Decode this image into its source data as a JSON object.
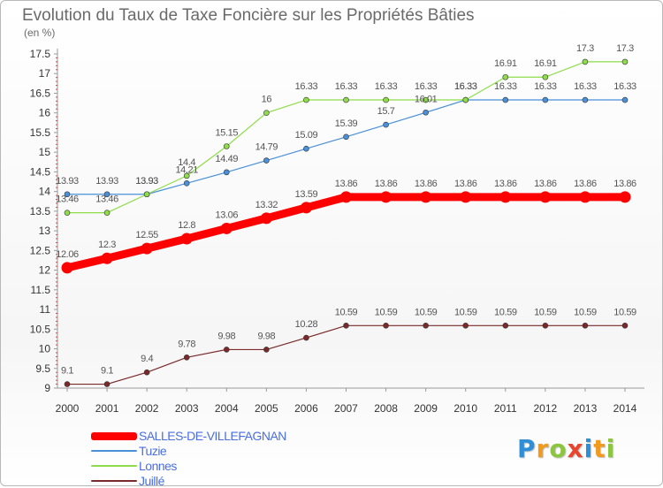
{
  "header": {
    "title": "Evolution du Taux de Taxe Foncière sur les Propriétés Bâties",
    "subtitle": "(en %)"
  },
  "logo": {
    "letters": [
      "P",
      "r",
      "o",
      "x",
      "i",
      "t",
      "i"
    ],
    "colors": [
      "#2e8fd6",
      "#f09a1e",
      "#8cc63f",
      "#e8452c",
      "#2e8fd6",
      "#f09a1e",
      "#8cc63f"
    ]
  },
  "chart_data": {
    "type": "line",
    "title": "Evolution du Taux de Taxe Foncière sur les Propriétés Bâties",
    "ylabel": "(en %)",
    "xlabel": "",
    "x": [
      2000,
      2001,
      2002,
      2003,
      2004,
      2005,
      2006,
      2007,
      2008,
      2009,
      2010,
      2011,
      2012,
      2013,
      2014
    ],
    "ylim": [
      9,
      17.5
    ],
    "yticks": [
      9,
      9.5,
      10,
      10.5,
      11,
      11.5,
      12,
      12.5,
      13,
      13.5,
      14,
      14.5,
      15,
      15.5,
      16,
      16.5,
      17,
      17.5
    ],
    "grid": false,
    "legend_position": "bottom-left",
    "series": [
      {
        "name": "SALLES-DE-VILLEFAGNAN",
        "color": "#ff0000",
        "highlight": true,
        "values": [
          12.06,
          12.3,
          12.55,
          12.8,
          13.06,
          13.32,
          13.59,
          13.86,
          13.86,
          13.86,
          13.86,
          13.86,
          13.86,
          13.86,
          13.86
        ],
        "labels": [
          "12.06",
          "12.3",
          "12.55",
          "12.8",
          "13.06",
          "13.32",
          "13.59",
          "13.86",
          "13.86",
          "13.86",
          "13.86",
          "13.86",
          "13.86",
          "13.86",
          "13.86"
        ]
      },
      {
        "name": "Tuzie",
        "color": "#4a90d9",
        "highlight": false,
        "values": [
          13.93,
          13.93,
          13.93,
          14.21,
          14.49,
          14.79,
          15.09,
          15.39,
          15.7,
          16.01,
          16.33,
          16.33,
          16.33,
          16.33,
          16.33
        ],
        "labels": [
          "13.93",
          "13.93",
          "13.93",
          "14.21",
          "14.49",
          "14.79",
          "15.09",
          "15.39",
          "15.7",
          "16.01",
          "16.33",
          "16.33",
          "16.33",
          "16.33",
          "16.33"
        ]
      },
      {
        "name": "Lonnes",
        "color": "#8edc4a",
        "highlight": false,
        "values": [
          13.46,
          13.46,
          13.93,
          14.4,
          15.15,
          16,
          16.33,
          16.33,
          16.33,
          16.33,
          16.33,
          16.91,
          16.91,
          17.3,
          17.3
        ],
        "labels": [
          "13.46",
          "13.46",
          "13.93",
          "14.4",
          "15.15",
          "16",
          "16.33",
          "16.33",
          "16.33",
          "16.33",
          "16.33",
          "16.91",
          "16.91",
          "17.3",
          "17.3"
        ]
      },
      {
        "name": "Juillé",
        "color": "#7a2a2a",
        "highlight": false,
        "values": [
          9.1,
          9.1,
          9.4,
          9.78,
          9.98,
          9.98,
          10.28,
          10.59,
          10.59,
          10.59,
          10.59,
          10.59,
          10.59,
          10.59,
          10.59
        ],
        "labels": [
          "9.1",
          "9.1",
          "9.4",
          "9.78",
          "9.98",
          "9.98",
          "10.28",
          "10.59",
          "10.59",
          "10.59",
          "10.59",
          "10.59",
          "10.59",
          "10.59",
          "10.59"
        ]
      }
    ]
  }
}
